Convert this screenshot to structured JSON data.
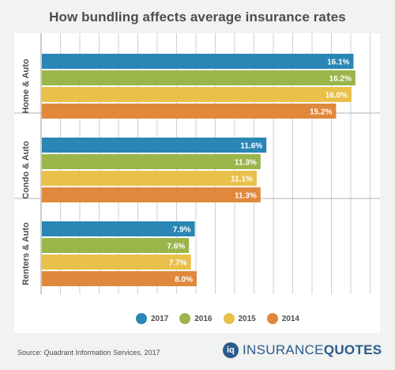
{
  "chart_data": {
    "type": "bar",
    "orientation": "horizontal",
    "title": "How bundling affects average insurance rates",
    "categories": [
      "Home & Auto",
      "Condo & Auto",
      "Renters & Auto"
    ],
    "series": [
      {
        "name": "2017",
        "color": "#2a86b5",
        "values": [
          16.1,
          11.6,
          7.9
        ],
        "labels": [
          "16.1%",
          "11.6%",
          "7.9%"
        ]
      },
      {
        "name": "2016",
        "color": "#9bb54a",
        "values": [
          16.2,
          11.3,
          7.6
        ],
        "labels": [
          "16.2%",
          "11.3%",
          "7.6%"
        ]
      },
      {
        "name": "2015",
        "color": "#e9c04a",
        "values": [
          16.0,
          11.1,
          7.7
        ],
        "labels": [
          "16.0%",
          "11.1%",
          "7.7%"
        ]
      },
      {
        "name": "2014",
        "color": "#e0883c",
        "values": [
          15.2,
          11.3,
          8.0
        ],
        "labels": [
          "15.2%",
          "11.3%",
          "8.0%"
        ]
      }
    ],
    "xlim": [
      0,
      18
    ],
    "grid": true,
    "legend_position": "bottom",
    "source": "Source: Quadrant Information Services, 2017"
  },
  "brand": {
    "mark": "iq",
    "insurance": "INSURANCE",
    "quotes": "QUOTES"
  }
}
